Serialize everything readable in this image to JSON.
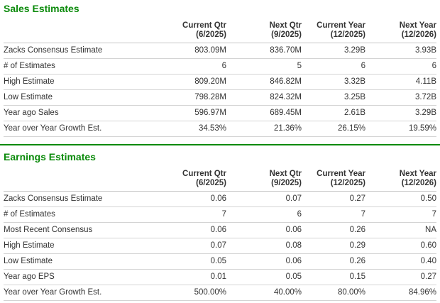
{
  "theme": {
    "accent_green": "#0a8a0a",
    "text_color": "#333333"
  },
  "sales": {
    "title": "Sales Estimates",
    "columns": [
      {
        "label": "Current Qtr",
        "period": "(6/2025)"
      },
      {
        "label": "Next Qtr",
        "period": "(9/2025)"
      },
      {
        "label": "Current Year",
        "period": "(12/2025)"
      },
      {
        "label": "Next Year",
        "period": "(12/2026)"
      }
    ],
    "rows": [
      {
        "label": "Zacks Consensus Estimate",
        "values": [
          "803.09M",
          "836.70M",
          "3.29B",
          "3.93B"
        ]
      },
      {
        "label": "# of Estimates",
        "values": [
          "6",
          "5",
          "6",
          "6"
        ]
      },
      {
        "label": "High Estimate",
        "values": [
          "809.20M",
          "846.82M",
          "3.32B",
          "4.11B"
        ]
      },
      {
        "label": "Low Estimate",
        "values": [
          "798.28M",
          "824.32M",
          "3.25B",
          "3.72B"
        ]
      },
      {
        "label": "Year ago Sales",
        "values": [
          "596.97M",
          "689.45M",
          "2.61B",
          "3.29B"
        ]
      },
      {
        "label": "Year over Year Growth Est.",
        "values": [
          "34.53%",
          "21.36%",
          "26.15%",
          "19.59%"
        ]
      }
    ]
  },
  "earnings": {
    "title": "Earnings Estimates",
    "columns": [
      {
        "label": "Current Qtr",
        "period": "(6/2025)"
      },
      {
        "label": "Next Qtr",
        "period": "(9/2025)"
      },
      {
        "label": "Current Year",
        "period": "(12/2025)"
      },
      {
        "label": "Next Year",
        "period": "(12/2026)"
      }
    ],
    "rows": [
      {
        "label": "Zacks Consensus Estimate",
        "values": [
          "0.06",
          "0.07",
          "0.27",
          "0.50"
        ]
      },
      {
        "label": "# of Estimates",
        "values": [
          "7",
          "6",
          "7",
          "7"
        ]
      },
      {
        "label": "Most Recent Consensus",
        "values": [
          "0.06",
          "0.06",
          "0.26",
          "NA"
        ]
      },
      {
        "label": "High Estimate",
        "values": [
          "0.07",
          "0.08",
          "0.29",
          "0.60"
        ]
      },
      {
        "label": "Low Estimate",
        "values": [
          "0.05",
          "0.06",
          "0.26",
          "0.40"
        ]
      },
      {
        "label": "Year ago EPS",
        "values": [
          "0.01",
          "0.05",
          "0.15",
          "0.27"
        ]
      },
      {
        "label": "Year over Year Growth Est.",
        "values": [
          "500.00%",
          "40.00%",
          "80.00%",
          "84.96%"
        ]
      }
    ]
  }
}
